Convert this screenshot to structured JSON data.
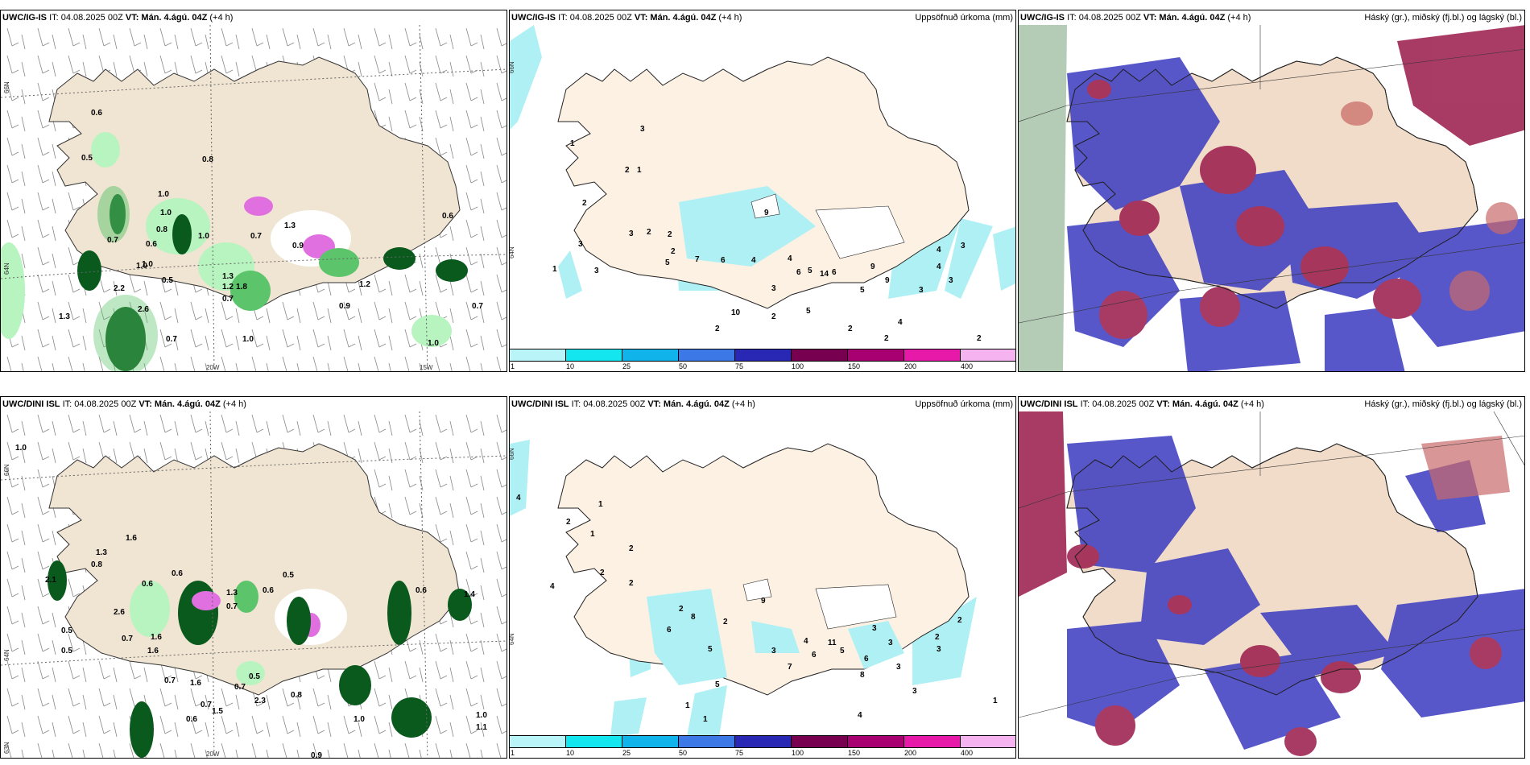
{
  "panels": {
    "p1": {
      "model": "UWC/IG-IS",
      "it_text": "IT: 04.08.2025 00Z",
      "vt_text": "VT: Mán. 4.ágú. 04Z",
      "lead": "(+4 h)",
      "right_title": ""
    },
    "p2": {
      "model": "UWC/IG-IS",
      "it_text": "IT: 04.08.2025 00Z",
      "vt_text": "VT: Mán. 4.ágú. 04Z",
      "lead": "(+4 h)",
      "right_title": "Uppsöfnuð úrkoma (mm)"
    },
    "p3": {
      "model": "UWC/IG-IS",
      "it_text": "IT: 04.08.2025 00Z",
      "vt_text": "VT: Mán. 4.ágú. 04Z",
      "lead": "(+4 h)",
      "right_title": "Háský (gr.), miðský (fj.bl.) og lágský (bl.)"
    },
    "p4": {
      "model": "UWC/DINI ISL",
      "it_text": "IT: 04.08.2025 00Z",
      "vt_text": "VT: Mán. 4.ágú. 04Z",
      "lead": "(+4 h)",
      "right_title": ""
    },
    "p5": {
      "model": "UWC/DINI ISL",
      "it_text": "IT: 04.08.2025 00Z",
      "vt_text": "VT: Mán. 4.ágú. 04Z",
      "lead": "(+4 h)",
      "right_title": "Uppsöfnuð úrkoma (mm)"
    },
    "p6": {
      "model": "UWC/DINI ISL",
      "it_text": "IT: 04.08.2025 00Z",
      "vt_text": "VT: Mán. 4.ágú. 04Z",
      "lead": "(+4 h)",
      "right_title": "Háský (gr.), miðský (fj.bl.) og lágský (bl.)"
    }
  },
  "grid_labels": {
    "lat66": "66N",
    "lat64": "64N",
    "lat66_top": "66N",
    "lon20": "20W",
    "lon15": "15W",
    "lat63": "63N"
  },
  "colorbar": {
    "ticks": [
      "1",
      "10",
      "25",
      "50",
      "75",
      "100",
      "150",
      "200",
      "400"
    ],
    "colors": [
      "#b8f4f8",
      "#14e6f0",
      "#10b4ea",
      "#3c78e6",
      "#2828b4",
      "#780050",
      "#a80070",
      "#e619a8",
      "#f5b4f0"
    ]
  },
  "colors": {
    "land": "#f0e4d2",
    "land_plain": "#fdf1e4",
    "precip_light": "#b8f4c0",
    "precip_mid": "#5cc46a",
    "precip_dark": "#0a5a1e",
    "snow_pink": "#e070e0",
    "acc_cyan": "#aef0f4",
    "cloud_high": "#7a7a7a",
    "cloud_mid": "#3a3ac0",
    "cloud_low": "#9a1a4a"
  },
  "values": {
    "p1": [
      "0.6",
      "0.5",
      "0.8",
      "1.0",
      "0.8",
      "1.0",
      "0.7",
      "1.3",
      "0.9",
      "1.3",
      "0.5",
      "1.0",
      "0.7",
      "1.0",
      "0.6",
      "1.2",
      "1.8",
      "0.9",
      "2.6",
      "1.3",
      "0.7",
      "1.0",
      "0.7",
      "1.0",
      "0.7",
      "2.2",
      "1.2",
      "0.6",
      "1.0"
    ],
    "p2": [
      "3",
      "1",
      "2",
      "1",
      "2",
      "3",
      "3",
      "2",
      "2",
      "3",
      "1",
      "5",
      "2",
      "7",
      "6",
      "4",
      "9",
      "6",
      "3",
      "4",
      "5",
      "14",
      "6",
      "9",
      "9",
      "4",
      "3",
      "5",
      "2",
      "2",
      "2",
      "10",
      "4",
      "5",
      "2",
      "3",
      "2",
      "4",
      "3"
    ],
    "p4": [
      "1.0",
      "1.6",
      "1.3",
      "0.8",
      "2.1",
      "0.6",
      "0.6",
      "0.5",
      "2.6",
      "0.5",
      "1.6",
      "1.3",
      "0.7",
      "0.7",
      "1.6",
      "0.7",
      "0.5",
      "0.6",
      "0.8",
      "2.3",
      "0.6",
      "0.5",
      "1.6",
      "0.7",
      "1.5",
      "1.0",
      "0.9",
      "1.4",
      "1.1",
      "1.0",
      "0.6",
      "0.7"
    ],
    "p5": [
      "4",
      "1",
      "2",
      "1",
      "2",
      "2",
      "4",
      "2",
      "2",
      "8",
      "9",
      "6",
      "2",
      "5",
      "3",
      "4",
      "6",
      "7",
      "11",
      "5",
      "3",
      "3",
      "6",
      "2",
      "3",
      "3",
      "8",
      "5",
      "1",
      "1",
      "3",
      "1",
      "2",
      "4"
    ]
  }
}
